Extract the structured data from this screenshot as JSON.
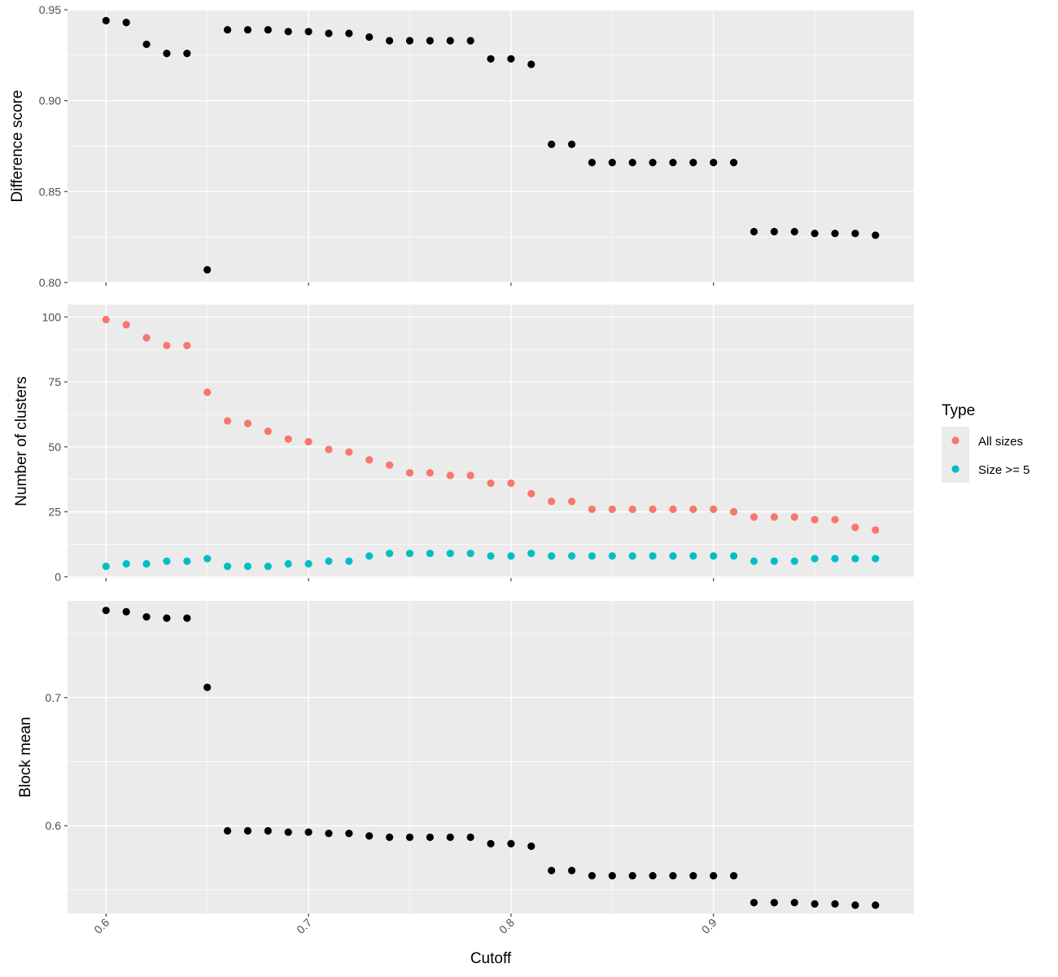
{
  "chart_data": [
    {
      "type": "scatter",
      "panel": "top",
      "title": "",
      "xlabel": "",
      "ylabel": "Difference score",
      "ylim": [
        0.8,
        0.95
      ],
      "yticks": [
        "0.80",
        "0.85",
        "0.90",
        "0.95"
      ],
      "grid": true,
      "series": [
        {
          "color": "#000000",
          "x": [
            0.6,
            0.61,
            0.62,
            0.63,
            0.64,
            0.65,
            0.66,
            0.67,
            0.68,
            0.69,
            0.7,
            0.71,
            0.72,
            0.73,
            0.74,
            0.75,
            0.76,
            0.77,
            0.78,
            0.79,
            0.8,
            0.81,
            0.82,
            0.83,
            0.84,
            0.85,
            0.86,
            0.87,
            0.88,
            0.89,
            0.9,
            0.91,
            0.92,
            0.93,
            0.94,
            0.95,
            0.96,
            0.97,
            0.98
          ],
          "values": [
            0.944,
            0.943,
            0.931,
            0.926,
            0.926,
            0.807,
            0.939,
            0.939,
            0.939,
            0.938,
            0.938,
            0.937,
            0.937,
            0.935,
            0.933,
            0.933,
            0.933,
            0.933,
            0.933,
            0.923,
            0.923,
            0.92,
            0.876,
            0.876,
            0.866,
            0.866,
            0.866,
            0.866,
            0.866,
            0.866,
            0.866,
            0.866,
            0.828,
            0.828,
            0.828,
            0.827,
            0.827,
            0.827,
            0.826
          ]
        }
      ]
    },
    {
      "type": "scatter",
      "panel": "middle",
      "title": "",
      "xlabel": "",
      "ylabel": "Number of clusters",
      "ylim": [
        0,
        100
      ],
      "yticks": [
        "0",
        "25",
        "50",
        "75",
        "100"
      ],
      "grid": true,
      "legend": {
        "title": "Type",
        "placement": "right"
      },
      "series": [
        {
          "name": "All sizes",
          "color": "#F8766D",
          "x": [
            0.6,
            0.61,
            0.62,
            0.63,
            0.64,
            0.65,
            0.66,
            0.67,
            0.68,
            0.69,
            0.7,
            0.71,
            0.72,
            0.73,
            0.74,
            0.75,
            0.76,
            0.77,
            0.78,
            0.79,
            0.8,
            0.81,
            0.82,
            0.83,
            0.84,
            0.85,
            0.86,
            0.87,
            0.88,
            0.89,
            0.9,
            0.91,
            0.92,
            0.93,
            0.94,
            0.95,
            0.96,
            0.97,
            0.98
          ],
          "values": [
            99,
            97,
            92,
            89,
            89,
            71,
            60,
            59,
            56,
            53,
            52,
            49,
            48,
            45,
            43,
            40,
            40,
            39,
            39,
            36,
            36,
            32,
            29,
            29,
            26,
            26,
            26,
            26,
            26,
            26,
            26,
            25,
            23,
            23,
            23,
            22,
            22,
            19,
            18
          ]
        },
        {
          "name": "Size >= 5",
          "color": "#00BFC4",
          "x": [
            0.6,
            0.61,
            0.62,
            0.63,
            0.64,
            0.65,
            0.66,
            0.67,
            0.68,
            0.69,
            0.7,
            0.71,
            0.72,
            0.73,
            0.74,
            0.75,
            0.76,
            0.77,
            0.78,
            0.79,
            0.8,
            0.81,
            0.82,
            0.83,
            0.84,
            0.85,
            0.86,
            0.87,
            0.88,
            0.89,
            0.9,
            0.91,
            0.92,
            0.93,
            0.94,
            0.95,
            0.96,
            0.97,
            0.98
          ],
          "values": [
            4,
            5,
            5,
            6,
            6,
            7,
            4,
            4,
            4,
            5,
            5,
            6,
            6,
            8,
            9,
            9,
            9,
            9,
            9,
            8,
            8,
            9,
            8,
            8,
            8,
            8,
            8,
            8,
            8,
            8,
            8,
            8,
            6,
            6,
            6,
            7,
            7,
            7,
            7
          ]
        }
      ]
    },
    {
      "type": "scatter",
      "panel": "bottom",
      "title": "",
      "xlabel": "Cutoff",
      "ylabel": "Block mean",
      "ylim": [
        0.536,
        0.775
      ],
      "yticks": [
        "0.6",
        "0.7"
      ],
      "xlim": [
        0.581,
        0.999
      ],
      "xticks": [
        "0.6",
        "0.7",
        "0.8",
        "0.9"
      ],
      "grid": true,
      "series": [
        {
          "color": "#000000",
          "x": [
            0.6,
            0.61,
            0.62,
            0.63,
            0.64,
            0.65,
            0.66,
            0.67,
            0.68,
            0.69,
            0.7,
            0.71,
            0.72,
            0.73,
            0.74,
            0.75,
            0.76,
            0.77,
            0.78,
            0.79,
            0.8,
            0.81,
            0.82,
            0.83,
            0.84,
            0.85,
            0.86,
            0.87,
            0.88,
            0.89,
            0.9,
            0.91,
            0.92,
            0.93,
            0.94,
            0.95,
            0.96,
            0.97,
            0.98
          ],
          "values": [
            0.768,
            0.767,
            0.763,
            0.762,
            0.762,
            0.708,
            0.596,
            0.596,
            0.596,
            0.595,
            0.595,
            0.594,
            0.594,
            0.592,
            0.591,
            0.591,
            0.591,
            0.591,
            0.591,
            0.586,
            0.586,
            0.584,
            0.565,
            0.565,
            0.561,
            0.561,
            0.561,
            0.561,
            0.561,
            0.561,
            0.561,
            0.561,
            0.54,
            0.54,
            0.54,
            0.539,
            0.539,
            0.538,
            0.538
          ]
        }
      ]
    }
  ]
}
